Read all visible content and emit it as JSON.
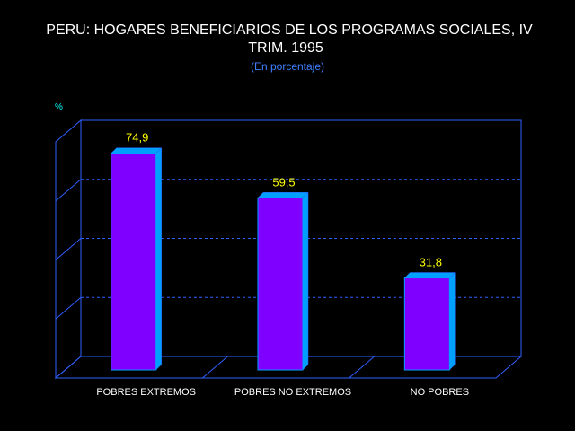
{
  "chart_data": {
    "type": "bar",
    "title_line1": "PERU: HOGARES BENEFICIARIOS DE LOS PROGRAMAS SOCIALES, IV",
    "title_line2": "TRIM. 1995",
    "subtitle": "(En porcentaje)",
    "ylabel": "%",
    "categories": [
      "POBRES EXTREMOS",
      "POBRES NO EXTREMOS",
      "NO POBRES"
    ],
    "values": [
      74.9,
      59.5,
      31.8
    ],
    "value_labels": [
      "74,9",
      "59,5",
      "31,8"
    ],
    "ylim": [
      0,
      80
    ],
    "grid": true,
    "three_d": true
  },
  "colors": {
    "background": "#000000",
    "title": "#ffffff",
    "subtitle": "#3f7fff",
    "unit": "#00ffff",
    "value_label": "#ffff00",
    "bar_front": "#8000ff",
    "bar_top": "#00a0ff",
    "frame": "#2f5fff",
    "grid": "#2f5fff",
    "category_label": "#ffffff"
  }
}
